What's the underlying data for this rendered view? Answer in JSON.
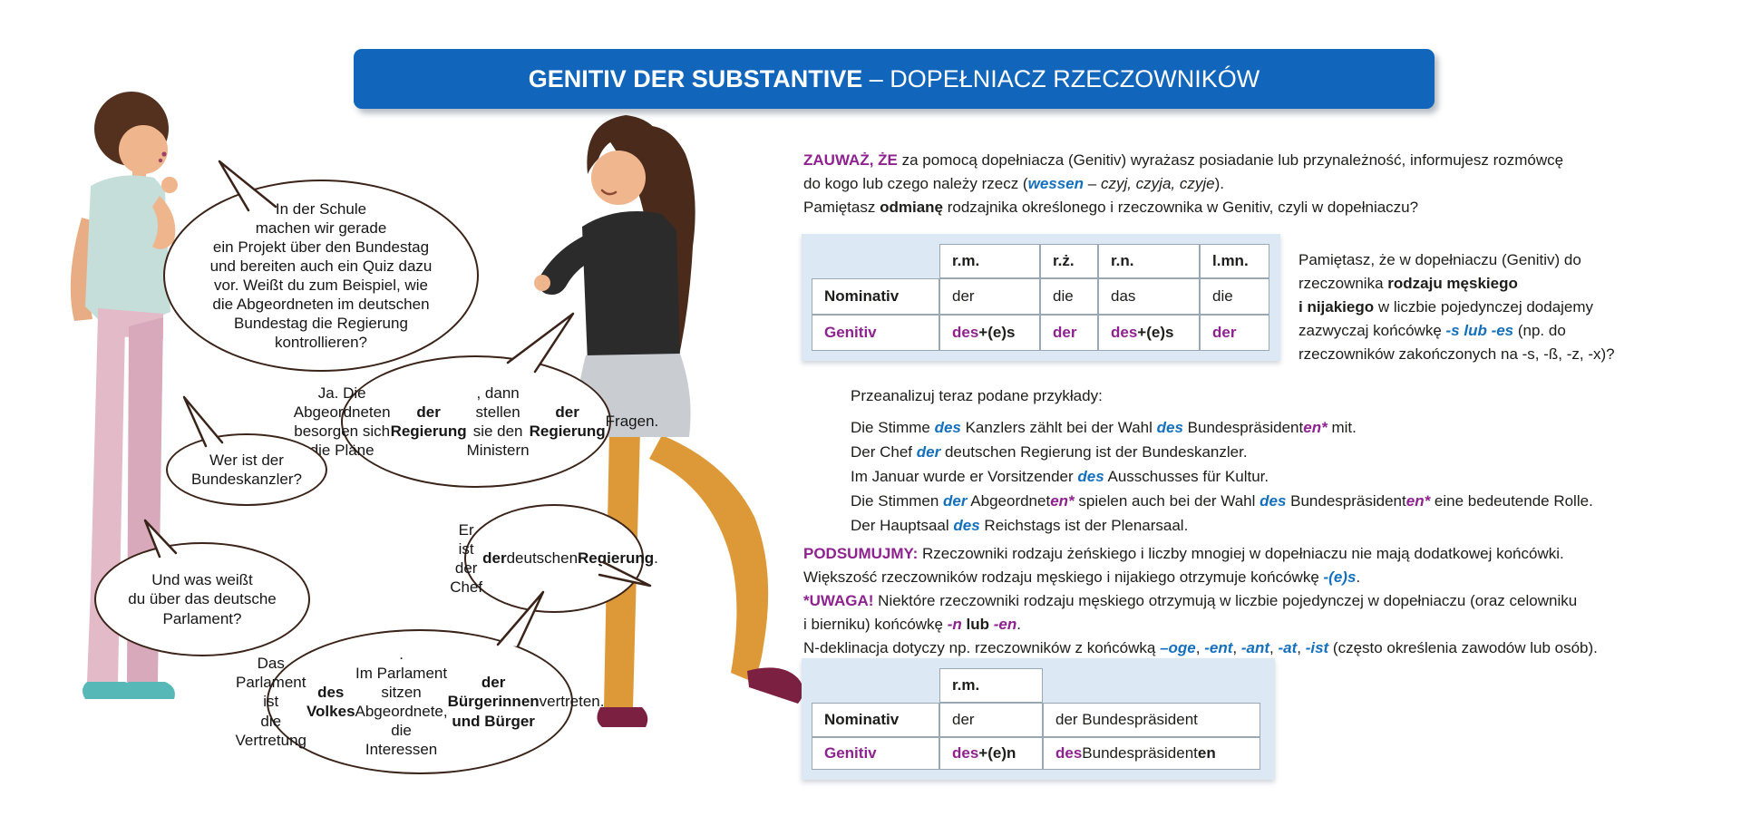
{
  "banner": {
    "title_bold": "GENITIV DER SUBSTANTIVE",
    "title_rest": " – DOPEŁNIACZ RZECZOWNIKÓW"
  },
  "bubbles": [
    {
      "id": "bubble-1",
      "speaker": "left-woman",
      "segments": [
        {
          "t": "In der Schule\nmachen wir gerade\nein Projekt über den Bundestag\nund bereiten auch ein Quiz dazu\nvor. Weißt du zum Beispiel, wie\ndie Abgeordneten im deutschen\nBundestag die Regierung\nkontrollieren?",
          "s": ""
        }
      ]
    },
    {
      "id": "bubble-2",
      "speaker": "right-woman",
      "segments": [
        {
          "t": "Ja. Die Abgeordneten\nbesorgen sich die Pläne\n",
          "s": ""
        },
        {
          "t": "der Regierung",
          "s": "b"
        },
        {
          "t": ", dann stellen\nsie den Ministern ",
          "s": ""
        },
        {
          "t": "der\nRegierung",
          "s": "b"
        },
        {
          "t": " Fragen.",
          "s": ""
        }
      ]
    },
    {
      "id": "bubble-3",
      "speaker": "left-woman",
      "segments": [
        {
          "t": "Wer ist der\nBundeskanzler?",
          "s": ""
        }
      ]
    },
    {
      "id": "bubble-4",
      "speaker": "left-woman",
      "segments": [
        {
          "t": "Und was weißt\ndu über das deutsche\nParlament?",
          "s": ""
        }
      ]
    },
    {
      "id": "bubble-5",
      "speaker": "right-woman",
      "segments": [
        {
          "t": "Er ist der\nChef ",
          "s": ""
        },
        {
          "t": "der",
          "s": "b"
        },
        {
          "t": " deutschen\n",
          "s": ""
        },
        {
          "t": "Regierung",
          "s": "b"
        },
        {
          "t": ".",
          "s": ""
        }
      ]
    },
    {
      "id": "bubble-6",
      "speaker": "right-woman",
      "segments": [
        {
          "t": "Das Parlament ist\ndie Vertretung ",
          "s": ""
        },
        {
          "t": "des Volkes",
          "s": "b"
        },
        {
          "t": ".\nIm Parlament sitzen Abgeordnete,\ndie Interessen ",
          "s": ""
        },
        {
          "t": "der Bürgerinnen\nund Bürger",
          "s": "b"
        },
        {
          "t": " vertreten.",
          "s": ""
        }
      ]
    }
  ],
  "intro_lines": [
    [
      {
        "t": "ZAUWAŻ, ŻE",
        "s": "pb"
      },
      {
        "t": " za pomocą dopełniacza (Genitiv) wyrażasz posiadanie lub przynależność, informujesz rozmówcę",
        "s": ""
      }
    ],
    [
      {
        "t": "do kogo lub czego należy rzecz (",
        "s": ""
      },
      {
        "t": "wessen",
        "s": "bluei"
      },
      {
        "t": " – ",
        "s": ""
      },
      {
        "t": "czyj, czyja, czyje",
        "s": "i"
      },
      {
        "t": ").",
        "s": ""
      }
    ],
    [
      {
        "t": "Pamiętasz ",
        "s": ""
      },
      {
        "t": "odmianę",
        "s": "b"
      },
      {
        "t": " rodzajnika określonego i rzeczownika w Genitiv, czyli w dopełniaczu?",
        "s": ""
      }
    ]
  ],
  "table1": {
    "headers": [
      "",
      "r.m.",
      "r.ż.",
      "r.n.",
      "l.mn."
    ],
    "rows": [
      {
        "label": "Nominativ",
        "cells": [
          [
            {
              "t": "der",
              "s": ""
            }
          ],
          [
            {
              "t": "die",
              "s": ""
            }
          ],
          [
            {
              "t": "das",
              "s": ""
            }
          ],
          [
            {
              "t": "die",
              "s": ""
            }
          ]
        ]
      },
      {
        "label": "Genitiv",
        "cells": [
          [
            {
              "t": "des",
              "s": "pb"
            },
            {
              "t": " +(e)s",
              "s": "b"
            }
          ],
          [
            {
              "t": "der",
              "s": "pb"
            }
          ],
          [
            {
              "t": "des",
              "s": "pb"
            },
            {
              "t": " +(e)s",
              "s": "b"
            }
          ],
          [
            {
              "t": "der",
              "s": "pb"
            }
          ]
        ]
      }
    ]
  },
  "side_note": [
    {
      "t": "Pamiętasz, że w dopełniaczu (Genitiv) do\nrzeczownika ",
      "s": ""
    },
    {
      "t": "rodzaju męskiego\ni nijakiego",
      "s": "b"
    },
    {
      "t": " w liczbie pojedynczej dodajemy\nzazwyczaj końcówkę ",
      "s": ""
    },
    {
      "t": "-s lub -es",
      "s": "bluei"
    },
    {
      "t": " (np. do\nrzeczowników zakończonych na -s, -ß, -z, -x)?",
      "s": ""
    }
  ],
  "examples_heading": "Przeanalizuj teraz podane przykłady:",
  "examples": [
    [
      {
        "t": "Die Stimme ",
        "s": ""
      },
      {
        "t": "des",
        "s": "bluei"
      },
      {
        "t": " Kanzlers zählt bei der Wahl ",
        "s": ""
      },
      {
        "t": "des",
        "s": "bluei"
      },
      {
        "t": " Bundespräsident",
        "s": ""
      },
      {
        "t": "en*",
        "s": "pbi"
      },
      {
        "t": " mit.",
        "s": ""
      }
    ],
    [
      {
        "t": "Der Chef ",
        "s": ""
      },
      {
        "t": "der",
        "s": "bluei"
      },
      {
        "t": " deutschen Regierung ist der Bundeskanzler.",
        "s": ""
      }
    ],
    [
      {
        "t": "Im Januar wurde er Vorsitzender ",
        "s": ""
      },
      {
        "t": "des",
        "s": "bluei"
      },
      {
        "t": " Ausschusses für Kultur.",
        "s": ""
      }
    ],
    [
      {
        "t": "Die Stimmen ",
        "s": ""
      },
      {
        "t": "der",
        "s": "bluei"
      },
      {
        "t": " Abgeordnet",
        "s": ""
      },
      {
        "t": "en*",
        "s": "pbi"
      },
      {
        "t": " spielen auch bei der Wahl ",
        "s": ""
      },
      {
        "t": "des",
        "s": "bluei"
      },
      {
        "t": " Bundespräsident",
        "s": ""
      },
      {
        "t": "en*",
        "s": "pbi"
      },
      {
        "t": " eine bedeutende Rolle.",
        "s": ""
      }
    ],
    [
      {
        "t": "Der Hauptsaal ",
        "s": ""
      },
      {
        "t": "des",
        "s": "bluei"
      },
      {
        "t": " Reichstags ist der Plenarsaal.",
        "s": ""
      }
    ]
  ],
  "summary_lines": [
    [
      {
        "t": "PODSUMUJMY:",
        "s": "pb"
      },
      {
        "t": " Rzeczowniki rodzaju żeńskiego i liczby mnogiej w dopełniaczu nie mają dodatkowej końcówki.",
        "s": ""
      }
    ],
    [
      {
        "t": "Większość rzeczowników rodzaju męskiego i nijakiego otrzymuje końcówkę ",
        "s": ""
      },
      {
        "t": "-(e)s",
        "s": "bluei"
      },
      {
        "t": ".",
        "s": ""
      }
    ],
    [
      {
        "t": "*UWAGA!",
        "s": "pb"
      },
      {
        "t": " Niektóre rzeczowniki rodzaju męskiego otrzymują w liczbie pojedynczej w dopełniaczu (oraz celowniku",
        "s": ""
      }
    ],
    [
      {
        "t": "i bierniku) końcówkę ",
        "s": ""
      },
      {
        "t": "-n",
        "s": "pbi"
      },
      {
        "t": " ",
        "s": ""
      },
      {
        "t": "lub",
        "s": "b"
      },
      {
        "t": " ",
        "s": ""
      },
      {
        "t": "-en",
        "s": "pbi"
      },
      {
        "t": ".",
        "s": ""
      }
    ],
    [
      {
        "t": "N-deklinacja dotyczy np. rzeczowników z końcówką ",
        "s": ""
      },
      {
        "t": "–oge",
        "s": "bluei"
      },
      {
        "t": ", ",
        "s": ""
      },
      {
        "t": "-ent",
        "s": "bluei"
      },
      {
        "t": ", ",
        "s": ""
      },
      {
        "t": "-ant",
        "s": "bluei"
      },
      {
        "t": ", ",
        "s": ""
      },
      {
        "t": "-at",
        "s": "bluei"
      },
      {
        "t": ", ",
        "s": ""
      },
      {
        "t": "-ist",
        "s": "bluei"
      },
      {
        "t": " (często określenia zawodów lub osób).",
        "s": ""
      }
    ]
  ],
  "table2": {
    "headers": [
      "",
      "r.m.",
      ""
    ],
    "rows": [
      {
        "label": "Nominativ",
        "cells": [
          [
            {
              "t": "der",
              "s": ""
            }
          ],
          [
            {
              "t": "der Bundespräsident",
              "s": ""
            }
          ]
        ]
      },
      {
        "label": "Genitiv",
        "cells": [
          [
            {
              "t": "des",
              "s": "pb"
            },
            {
              "t": " +(e)n",
              "s": "b"
            }
          ],
          [
            {
              "t": "des",
              "s": "pb"
            },
            {
              "t": " Bundespräsident",
              "s": ""
            },
            {
              "t": "en",
              "s": "b"
            }
          ]
        ]
      }
    ]
  },
  "colors": {
    "banner_blue": "#1166bb",
    "accent_purple": "#8e228e",
    "accent_blue": "#1470bd",
    "panel_blue": "#dce9f5",
    "bubble_outline": "#3a2318"
  }
}
